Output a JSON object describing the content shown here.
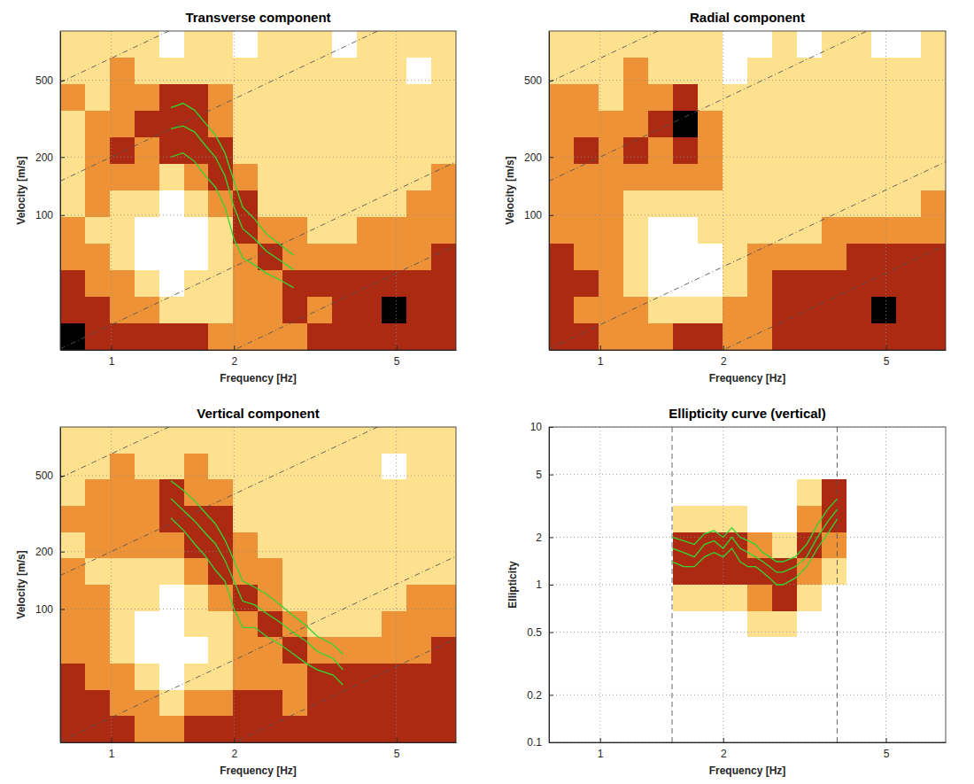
{
  "chart_data": [
    {
      "type": "heatmap",
      "title": "Transverse component",
      "xlabel": "Frequency [Hz]",
      "ylabel": "Velocity [m/s]",
      "xlim": [
        0.75,
        7
      ],
      "ylim": [
        20,
        900
      ],
      "xticks": [
        1,
        2,
        5
      ],
      "yticks": [
        100,
        200,
        500
      ],
      "log": true,
      "grid": true,
      "x_bins": [
        0.75,
        0.862,
        0.991,
        1.14,
        1.31,
        1.51,
        1.73,
        1.99,
        2.29,
        2.63,
        3.03,
        3.48,
        4.0,
        4.6,
        5.29,
        6.08,
        7
      ],
      "y_bins": [
        20,
        27.5,
        37.7,
        51.8,
        71.2,
        97.7,
        134,
        184,
        253,
        348,
        478,
        656,
        900
      ],
      "zlim": [
        0,
        4
      ],
      "z": [
        [
          4,
          3,
          3,
          3,
          3,
          3,
          2,
          2,
          2,
          2,
          3,
          3,
          3,
          3,
          3,
          3
        ],
        [
          3,
          3,
          2,
          2,
          1,
          1,
          1,
          2,
          2,
          3,
          2,
          3,
          3,
          4,
          3,
          3
        ],
        [
          3,
          2,
          2,
          1,
          0,
          1,
          1,
          2,
          2,
          3,
          3,
          3,
          3,
          3,
          3,
          3
        ],
        [
          2,
          2,
          1,
          0,
          0,
          0,
          1,
          2,
          3,
          2,
          2,
          2,
          2,
          2,
          2,
          3
        ],
        [
          2,
          1,
          1,
          0,
          0,
          0,
          1,
          3,
          2,
          2,
          1,
          1,
          2,
          2,
          2,
          2
        ],
        [
          1,
          2,
          1,
          1,
          0,
          1,
          2,
          3,
          1,
          1,
          1,
          1,
          1,
          1,
          2,
          2
        ],
        [
          1,
          2,
          2,
          2,
          1,
          2,
          3,
          2,
          1,
          1,
          1,
          1,
          1,
          1,
          1,
          2
        ],
        [
          1,
          2,
          3,
          2,
          3,
          3,
          3,
          1,
          1,
          1,
          1,
          1,
          1,
          1,
          1,
          1
        ],
        [
          1,
          2,
          2,
          3,
          3,
          3,
          2,
          1,
          1,
          1,
          1,
          1,
          1,
          1,
          1,
          1
        ],
        [
          2,
          1,
          2,
          2,
          3,
          3,
          2,
          1,
          1,
          1,
          1,
          1,
          1,
          1,
          1,
          1
        ],
        [
          1,
          1,
          2,
          1,
          1,
          1,
          1,
          1,
          1,
          1,
          1,
          1,
          1,
          1,
          0,
          1
        ],
        [
          1,
          1,
          1,
          1,
          0,
          1,
          1,
          0,
          1,
          1,
          1,
          0,
          1,
          1,
          1,
          1
        ]
      ],
      "wavelength_lines": [
        650,
        200,
        27,
        10
      ],
      "x": [
        1.4,
        1.5,
        1.6,
        1.7,
        1.8,
        1.9,
        2.0,
        2.1,
        2.25,
        2.4,
        2.6,
        2.8
      ],
      "series": [
        {
          "color": "#33d633",
          "values": [
            280,
            290,
            270,
            230,
            200,
            160,
            110,
            85,
            75,
            65,
            58,
            52
          ]
        },
        {
          "color": "#33d633",
          "values": [
            360,
            380,
            350,
            300,
            260,
            210,
            150,
            110,
            95,
            80,
            70,
            62
          ]
        },
        {
          "color": "#33d633",
          "values": [
            200,
            210,
            190,
            160,
            140,
            110,
            75,
            60,
            55,
            50,
            46,
            42
          ]
        }
      ]
    },
    {
      "type": "heatmap",
      "title": "Radial component",
      "xlabel": "Frequency [Hz]",
      "ylabel": "Velocity [m/s]",
      "xlim": [
        0.75,
        7
      ],
      "ylim": [
        20,
        900
      ],
      "xticks": [
        1,
        2,
        5
      ],
      "yticks": [
        100,
        200,
        500
      ],
      "log": true,
      "grid": true,
      "x_bins": [
        0.75,
        0.862,
        0.991,
        1.14,
        1.31,
        1.51,
        1.73,
        1.99,
        2.29,
        2.63,
        3.03,
        3.48,
        4.0,
        4.6,
        5.29,
        6.08,
        7
      ],
      "y_bins": [
        20,
        27.5,
        37.7,
        51.8,
        71.2,
        97.7,
        134,
        184,
        253,
        348,
        478,
        656,
        900
      ],
      "zlim": [
        0,
        4
      ],
      "z": [
        [
          3,
          3,
          2,
          2,
          2,
          3,
          3,
          2,
          2,
          3,
          3,
          3,
          3,
          3,
          3,
          3
        ],
        [
          3,
          2,
          2,
          2,
          1,
          1,
          1,
          2,
          2,
          3,
          3,
          3,
          3,
          4,
          3,
          3
        ],
        [
          3,
          3,
          2,
          1,
          0,
          0,
          0,
          1,
          2,
          3,
          3,
          3,
          3,
          3,
          3,
          3
        ],
        [
          3,
          2,
          2,
          1,
          0,
          0,
          0,
          1,
          2,
          2,
          2,
          2,
          3,
          3,
          3,
          3
        ],
        [
          2,
          2,
          2,
          1,
          0,
          0,
          1,
          1,
          1,
          1,
          1,
          2,
          2,
          2,
          2,
          2
        ],
        [
          2,
          2,
          2,
          1,
          1,
          1,
          1,
          1,
          1,
          1,
          1,
          1,
          1,
          1,
          1,
          2
        ],
        [
          2,
          2,
          2,
          2,
          2,
          2,
          2,
          1,
          1,
          1,
          1,
          1,
          1,
          1,
          1,
          1
        ],
        [
          2,
          3,
          2,
          3,
          2,
          3,
          2,
          1,
          1,
          1,
          1,
          1,
          1,
          1,
          1,
          1
        ],
        [
          2,
          2,
          2,
          2,
          3,
          4,
          2,
          1,
          1,
          1,
          1,
          1,
          1,
          1,
          1,
          1
        ],
        [
          2,
          2,
          1,
          2,
          2,
          3,
          1,
          1,
          1,
          1,
          1,
          1,
          1,
          1,
          1,
          1
        ],
        [
          1,
          1,
          1,
          2,
          1,
          1,
          1,
          0,
          1,
          1,
          1,
          1,
          1,
          1,
          1,
          1
        ],
        [
          1,
          1,
          1,
          1,
          1,
          1,
          1,
          0,
          0,
          1,
          0,
          1,
          1,
          0,
          0,
          1
        ]
      ],
      "wavelength_lines": [
        650,
        200,
        27,
        10
      ]
    },
    {
      "type": "heatmap",
      "title": "Vertical component",
      "xlabel": "Frequency [Hz]",
      "ylabel": "Velocity [m/s]",
      "xlim": [
        0.75,
        7
      ],
      "ylim": [
        20,
        900
      ],
      "xticks": [
        1,
        2,
        5
      ],
      "yticks": [
        100,
        200,
        500
      ],
      "log": true,
      "grid": true,
      "x_bins": [
        0.75,
        0.862,
        0.991,
        1.14,
        1.31,
        1.51,
        1.73,
        1.99,
        2.29,
        2.63,
        3.03,
        3.48,
        4.0,
        4.6,
        5.29,
        6.08,
        7
      ],
      "y_bins": [
        20,
        27.5,
        37.7,
        51.8,
        71.2,
        97.7,
        134,
        184,
        253,
        348,
        478,
        656,
        900
      ],
      "zlim": [
        0,
        4
      ],
      "z": [
        [
          3,
          3,
          3,
          2,
          2,
          3,
          3,
          3,
          3,
          3,
          3,
          3,
          3,
          3,
          3,
          3
        ],
        [
          3,
          3,
          2,
          2,
          1,
          2,
          2,
          3,
          3,
          2,
          3,
          3,
          3,
          3,
          3,
          3
        ],
        [
          3,
          2,
          2,
          1,
          0,
          1,
          1,
          2,
          2,
          2,
          3,
          3,
          3,
          3,
          3,
          3
        ],
        [
          2,
          2,
          1,
          0,
          0,
          0,
          1,
          2,
          2,
          3,
          2,
          2,
          2,
          2,
          2,
          3
        ],
        [
          2,
          2,
          1,
          0,
          0,
          1,
          1,
          2,
          3,
          2,
          1,
          1,
          1,
          2,
          2,
          2
        ],
        [
          2,
          2,
          1,
          1,
          0,
          1,
          2,
          3,
          2,
          1,
          1,
          1,
          1,
          1,
          2,
          2
        ],
        [
          2,
          1,
          1,
          1,
          1,
          2,
          3,
          2,
          2,
          1,
          1,
          1,
          1,
          1,
          1,
          1
        ],
        [
          1,
          2,
          2,
          2,
          2,
          3,
          3,
          2,
          1,
          1,
          1,
          1,
          1,
          1,
          1,
          1
        ],
        [
          2,
          2,
          2,
          2,
          3,
          3,
          3,
          1,
          1,
          1,
          1,
          1,
          1,
          1,
          1,
          1
        ],
        [
          1,
          2,
          2,
          2,
          3,
          2,
          2,
          1,
          1,
          1,
          1,
          1,
          1,
          1,
          1,
          1
        ],
        [
          1,
          1,
          2,
          1,
          1,
          2,
          1,
          1,
          1,
          1,
          1,
          1,
          1,
          0,
          1,
          1
        ],
        [
          1,
          1,
          1,
          1,
          1,
          1,
          1,
          1,
          1,
          1,
          1,
          1,
          1,
          1,
          1,
          1
        ]
      ],
      "wavelength_lines": [
        650,
        200,
        27,
        10
      ],
      "x": [
        1.4,
        1.5,
        1.6,
        1.7,
        1.8,
        1.9,
        2.0,
        2.1,
        2.25,
        2.4,
        2.6,
        2.8,
        3.0,
        3.2,
        3.5,
        3.7
      ],
      "series": [
        {
          "color": "#33d633",
          "values": [
            380,
            330,
            290,
            250,
            220,
            180,
            140,
            110,
            105,
            95,
            85,
            75,
            68,
            60,
            55,
            48
          ]
        },
        {
          "color": "#33d633",
          "values": [
            470,
            420,
            370,
            320,
            280,
            230,
            180,
            140,
            130,
            120,
            105,
            92,
            82,
            72,
            65,
            58
          ]
        },
        {
          "color": "#33d633",
          "values": [
            300,
            260,
            220,
            190,
            160,
            140,
            100,
            80,
            80,
            72,
            65,
            58,
            52,
            48,
            45,
            40
          ]
        }
      ]
    },
    {
      "type": "heatmap",
      "title": "Ellipticity curve (vertical)",
      "xlabel": "Frequency [Hz]",
      "ylabel": "Ellipticity",
      "xlim": [
        0.75,
        7
      ],
      "ylim": [
        0.1,
        10
      ],
      "xticks": [
        1,
        2,
        5
      ],
      "yticks": [
        0.1,
        0.2,
        0.5,
        1,
        2,
        5,
        10
      ],
      "log": true,
      "grid": true,
      "x_bins": [
        0.75,
        0.862,
        0.991,
        1.14,
        1.31,
        1.51,
        1.73,
        1.99,
        2.29,
        2.63,
        3.03,
        3.48,
        4.0,
        4.6,
        5.29,
        6.08,
        7
      ],
      "y_bins": [
        0.1,
        0.147,
        0.215,
        0.316,
        0.464,
        0.681,
        1.0,
        1.47,
        2.15,
        3.16,
        4.64,
        6.81,
        10
      ],
      "zlim": [
        0,
        4
      ],
      "z": [
        [
          0,
          0,
          0,
          0,
          0,
          0,
          0,
          0,
          0,
          0,
          0,
          0,
          0,
          0,
          0,
          0
        ],
        [
          0,
          0,
          0,
          0,
          0,
          0,
          0,
          0,
          0,
          0,
          0,
          0,
          0,
          0,
          0,
          0
        ],
        [
          0,
          0,
          0,
          0,
          0,
          0,
          0,
          0,
          0,
          0,
          0,
          0,
          0,
          0,
          0,
          0
        ],
        [
          0,
          0,
          0,
          0,
          0,
          0,
          0,
          0,
          0,
          0,
          0,
          0,
          0,
          0,
          0,
          0
        ],
        [
          0,
          0,
          0,
          0,
          0,
          0,
          0,
          0,
          1,
          1,
          0,
          0,
          0,
          0,
          0,
          0
        ],
        [
          0,
          0,
          0,
          0,
          0,
          1,
          1,
          1,
          2,
          3,
          1,
          0,
          0,
          0,
          0,
          0
        ],
        [
          0,
          0,
          0,
          0,
          0,
          3,
          3,
          3,
          3,
          3,
          2,
          1,
          0,
          0,
          0,
          0
        ],
        [
          0,
          0,
          0,
          0,
          0,
          3,
          3,
          3,
          2,
          1,
          3,
          2,
          0,
          0,
          0,
          0
        ],
        [
          0,
          0,
          0,
          0,
          0,
          1,
          1,
          1,
          0,
          0,
          2,
          3,
          0,
          0,
          0,
          0
        ],
        [
          0,
          0,
          0,
          0,
          0,
          0,
          0,
          0,
          0,
          0,
          1,
          3,
          0,
          0,
          0,
          0
        ],
        [
          0,
          0,
          0,
          0,
          0,
          0,
          0,
          0,
          0,
          0,
          0,
          0,
          0,
          0,
          0,
          0
        ],
        [
          0,
          0,
          0,
          0,
          0,
          0,
          0,
          0,
          0,
          0,
          0,
          0,
          0,
          0,
          0,
          0
        ]
      ],
      "freq_limits": [
        1.5,
        3.8
      ],
      "x": [
        1.5,
        1.6,
        1.7,
        1.8,
        1.9,
        2.0,
        2.1,
        2.2,
        2.3,
        2.4,
        2.5,
        2.6,
        2.7,
        2.8,
        3.0,
        3.2,
        3.4,
        3.6,
        3.8
      ],
      "series": [
        {
          "color": "#33d633",
          "values": [
            1.7,
            1.6,
            1.5,
            1.8,
            1.9,
            1.7,
            2.0,
            1.7,
            1.6,
            1.5,
            1.4,
            1.3,
            1.2,
            1.2,
            1.3,
            1.5,
            2.0,
            2.5,
            3.0
          ]
        },
        {
          "color": "#33d633",
          "values": [
            2.0,
            1.9,
            1.8,
            2.1,
            2.2,
            2.0,
            2.3,
            2.0,
            1.9,
            1.8,
            1.6,
            1.5,
            1.4,
            1.4,
            1.5,
            1.8,
            2.4,
            3.0,
            3.5
          ]
        },
        {
          "color": "#33d633",
          "values": [
            1.4,
            1.3,
            1.3,
            1.5,
            1.6,
            1.5,
            1.7,
            1.4,
            1.3,
            1.3,
            1.2,
            1.1,
            1.0,
            1.0,
            1.1,
            1.3,
            1.7,
            2.1,
            2.6
          ]
        }
      ]
    }
  ]
}
